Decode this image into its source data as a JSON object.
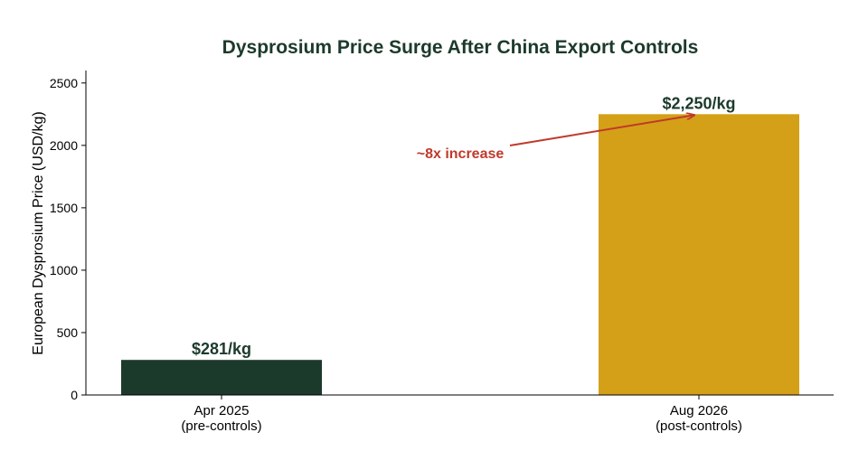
{
  "chart_data": {
    "type": "bar",
    "title": "Dysprosium Price Surge After China Export Controls",
    "ylabel": "European Dysprosium Price (USD/kg)",
    "xlabel": "",
    "ylim": [
      0,
      2600
    ],
    "yticks": [
      0,
      500,
      1000,
      1500,
      2000,
      2500
    ],
    "grid": false,
    "categories": [
      {
        "line1": "Apr 2025",
        "line2": "(pre-controls)"
      },
      {
        "line1": "Aug 2026",
        "line2": "(post-controls)"
      }
    ],
    "values": [
      281,
      2250
    ],
    "value_labels": [
      "$281/kg",
      "$2,250/kg"
    ],
    "bar_colors": [
      "#1c3a2b",
      "#d4a017"
    ],
    "annotation": {
      "text": "~8x increase",
      "color": "#c0392b",
      "points_to_category": 1,
      "points_to_value": 2250
    }
  },
  "colors": {
    "title": "#1c3a2b",
    "value_label": "#1c3a2b",
    "axis": "#000000"
  }
}
